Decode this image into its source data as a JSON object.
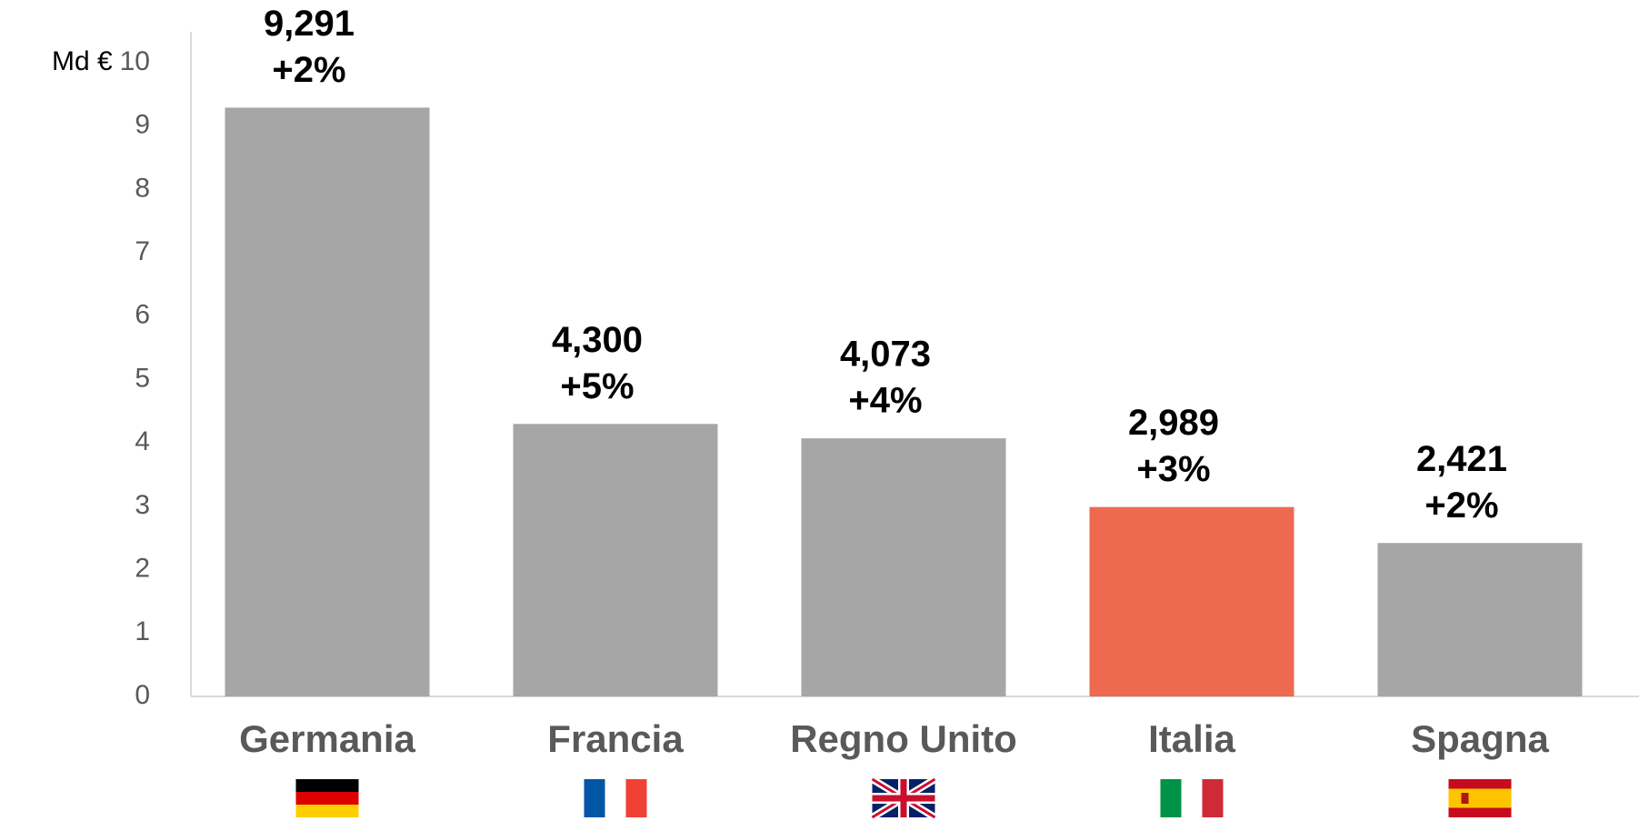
{
  "chart_data": {
    "type": "bar",
    "y_label": "Md €",
    "categories": [
      "Germania",
      "Francia",
      "Regno Unito",
      "Italia",
      "Spagna"
    ],
    "values": [
      9.291,
      4.3,
      4.073,
      2.989,
      2.421
    ],
    "value_labels": [
      "9,291",
      "4,300",
      "4,073",
      "2,989",
      "2,421"
    ],
    "growth": [
      2,
      5,
      4,
      3,
      2
    ],
    "growth_labels": [
      "+2%",
      "+5%",
      "+4%",
      "+3%",
      "+2%"
    ],
    "colors": [
      "#a6a6a6",
      "#a6a6a6",
      "#a6a6a6",
      "#ed6a51",
      "#a6a6a6"
    ],
    "ylim": [
      0,
      10
    ],
    "yticks": [
      0,
      1,
      2,
      3,
      4,
      5,
      6,
      7,
      8,
      9,
      10
    ],
    "grid": false
  }
}
